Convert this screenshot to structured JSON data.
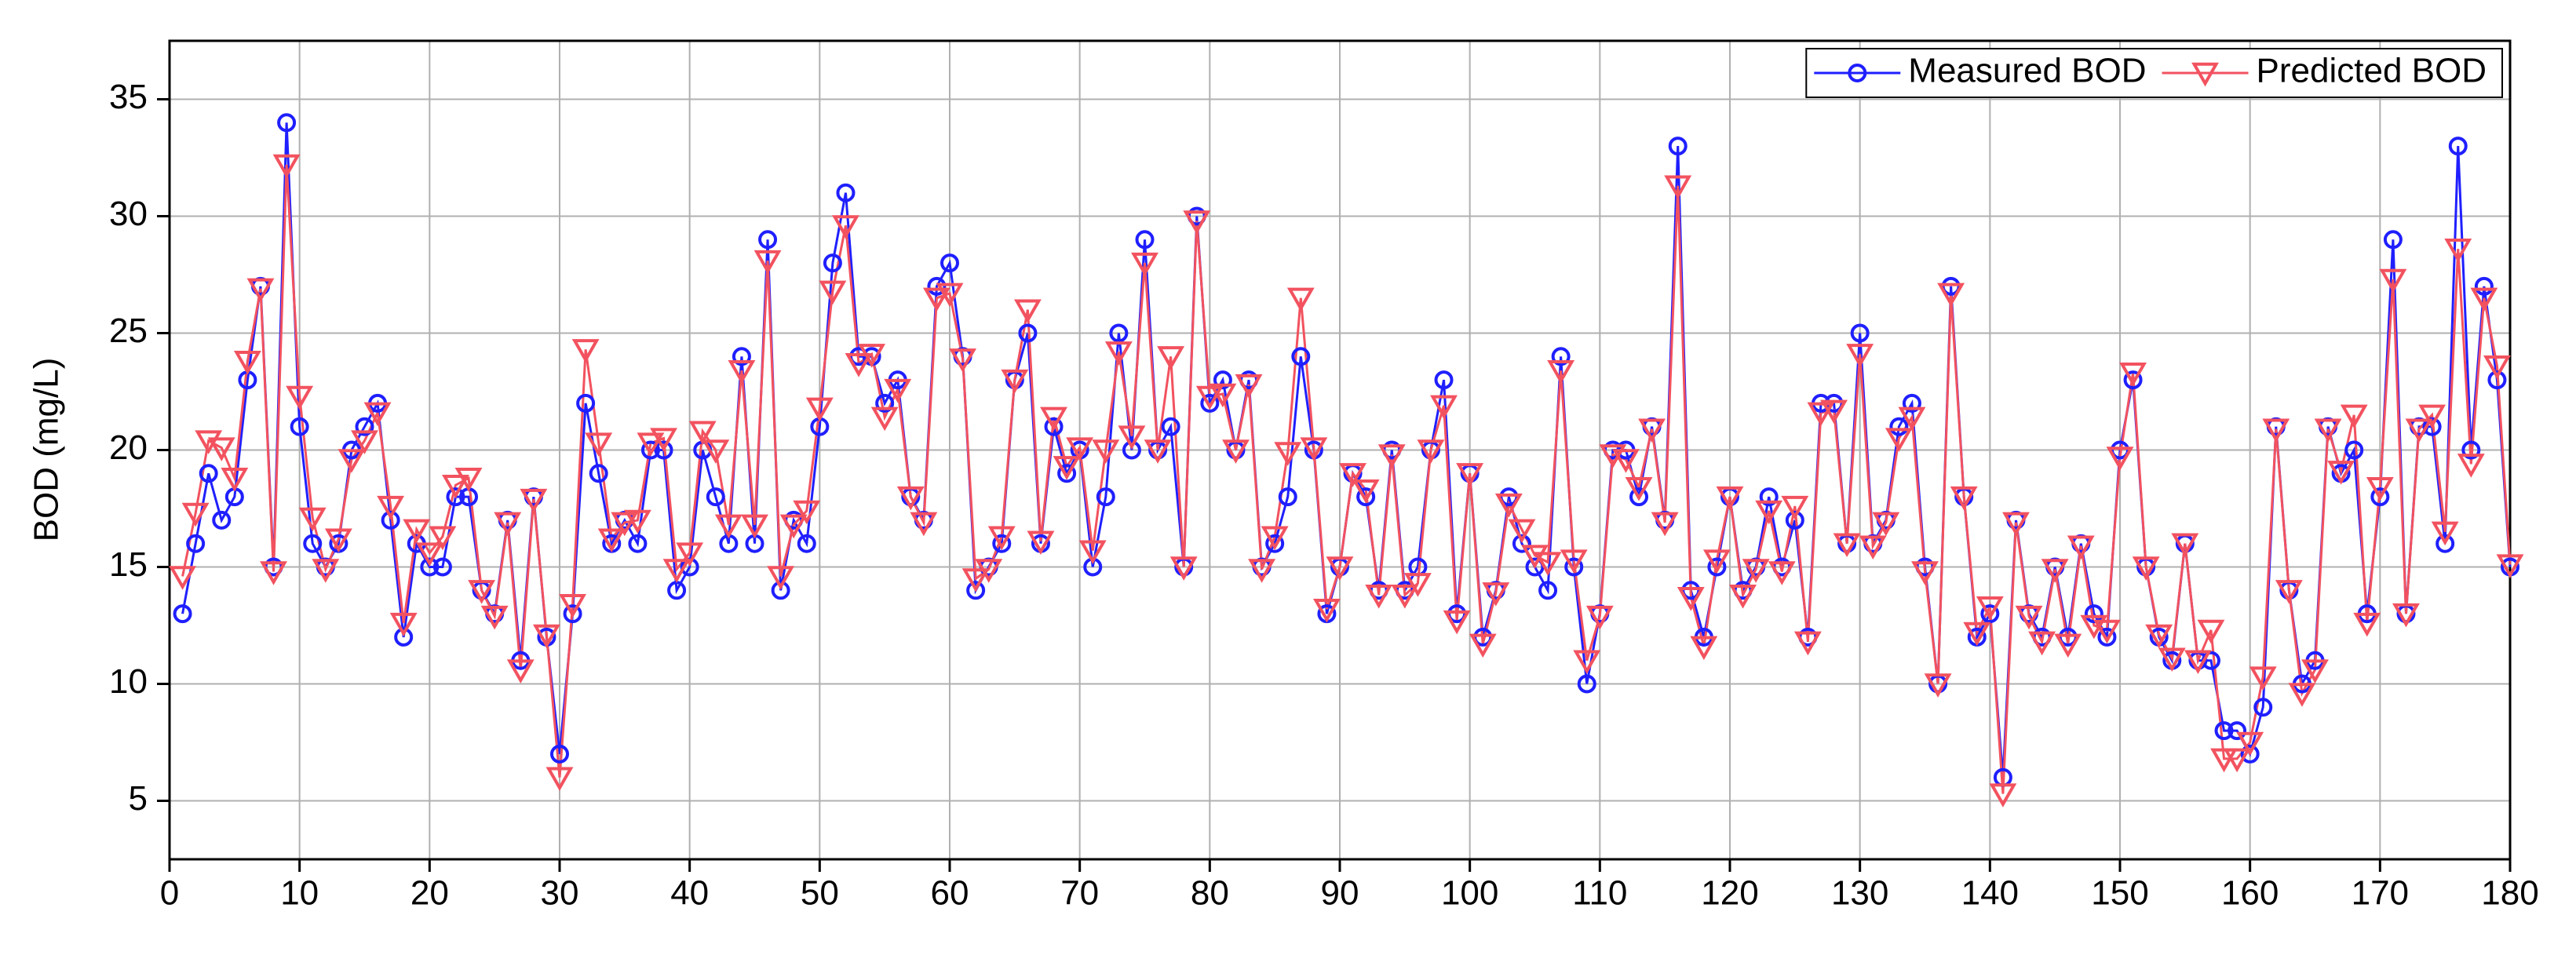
{
  "chart_data": {
    "type": "line",
    "y_label": "BOD  (mg/L)",
    "x": [
      1,
      2,
      3,
      4,
      5,
      6,
      7,
      8,
      9,
      10,
      11,
      12,
      13,
      14,
      15,
      16,
      17,
      18,
      19,
      20,
      21,
      22,
      23,
      24,
      25,
      26,
      27,
      28,
      29,
      30,
      31,
      32,
      33,
      34,
      35,
      36,
      37,
      38,
      39,
      40,
      41,
      42,
      43,
      44,
      45,
      46,
      47,
      48,
      49,
      50,
      51,
      52,
      53,
      54,
      55,
      56,
      57,
      58,
      59,
      60,
      61,
      62,
      63,
      64,
      65,
      66,
      67,
      68,
      69,
      70,
      71,
      72,
      73,
      74,
      75,
      76,
      77,
      78,
      79,
      80,
      81,
      82,
      83,
      84,
      85,
      86,
      87,
      88,
      89,
      90,
      91,
      92,
      93,
      94,
      95,
      96,
      97,
      98,
      99,
      100,
      101,
      102,
      103,
      104,
      105,
      106,
      107,
      108,
      109,
      110,
      111,
      112,
      113,
      114,
      115,
      116,
      117,
      118,
      119,
      120,
      121,
      122,
      123,
      124,
      125,
      126,
      127,
      128,
      129,
      130,
      131,
      132,
      133,
      134,
      135,
      136,
      137,
      138,
      139,
      140,
      141,
      142,
      143,
      144,
      145,
      146,
      147,
      148,
      149,
      150,
      151,
      152,
      153,
      154,
      155,
      156,
      157,
      158,
      159,
      160,
      161,
      162,
      163,
      164,
      165,
      166,
      167,
      168,
      169,
      170,
      171,
      172,
      173,
      174,
      175,
      176,
      177,
      178,
      179,
      180
    ],
    "series": [
      {
        "name": "Measured BOD",
        "color": "#1f1fff",
        "marker": "circle",
        "values": [
          13,
          16,
          19,
          17,
          18,
          23,
          27,
          15,
          34,
          21,
          16,
          15,
          16,
          20,
          21,
          22,
          17,
          12,
          16,
          15,
          15,
          18,
          18,
          14,
          13,
          17,
          11,
          18,
          12,
          7,
          13,
          22,
          19,
          16,
          17,
          16,
          20,
          20,
          14,
          15,
          20,
          18,
          16,
          24,
          16,
          29,
          14,
          17,
          16,
          21,
          28,
          31,
          24,
          24,
          22,
          23,
          18,
          17,
          27,
          28,
          24,
          14,
          15,
          16,
          23,
          25,
          16,
          21,
          19,
          20,
          15,
          18,
          25,
          20,
          29,
          20,
          21,
          15,
          30,
          22,
          23,
          20,
          23,
          15,
          16,
          18,
          24,
          20,
          13,
          15,
          19,
          18,
          14,
          20,
          14,
          15,
          20,
          23,
          13,
          19,
          12,
          14,
          18,
          16,
          15,
          14,
          24,
          15,
          10,
          13,
          20,
          20,
          18,
          21,
          17,
          33,
          14,
          12,
          15,
          18,
          14,
          15,
          18,
          15,
          17,
          12,
          22,
          22,
          16,
          25,
          16,
          17,
          21,
          22,
          15,
          10,
          27,
          18,
          12,
          13,
          6,
          17,
          13,
          12,
          15,
          12,
          16,
          13,
          12,
          20,
          23,
          15,
          12,
          11,
          16,
          11,
          11,
          8,
          8,
          7,
          9,
          21,
          14,
          10,
          11,
          21,
          19,
          20,
          13,
          18,
          29,
          13,
          21,
          21,
          16,
          33,
          20,
          27,
          23,
          15
        ]
      },
      {
        "name": "Predicted BOD",
        "color": "#f2525f",
        "marker": "triangle-down",
        "values": [
          14.6,
          17.3,
          20.4,
          20.1,
          18.8,
          23.8,
          26.9,
          14.8,
          32.2,
          22.3,
          17.1,
          14.9,
          16.2,
          19.6,
          20.4,
          21.6,
          17.6,
          12.6,
          16.6,
          15.6,
          16.3,
          18.5,
          18.8,
          14.0,
          12.9,
          16.9,
          10.6,
          17.9,
          12.1,
          6.0,
          13.4,
          24.3,
          20.3,
          16.2,
          16.9,
          17.0,
          20.3,
          20.5,
          14.9,
          15.6,
          20.8,
          20.0,
          16.8,
          23.4,
          16.8,
          28.1,
          14.6,
          16.8,
          17.4,
          21.8,
          26.8,
          29.6,
          23.7,
          24.1,
          21.4,
          22.6,
          18.0,
          16.9,
          26.5,
          26.7,
          23.9,
          14.5,
          14.9,
          16.3,
          23.0,
          26.0,
          16.1,
          21.4,
          19.3,
          20.1,
          15.7,
          20.0,
          24.2,
          20.6,
          28.0,
          20.0,
          24.0,
          15.0,
          29.8,
          22.3,
          22.4,
          20.0,
          22.8,
          14.9,
          16.3,
          19.9,
          26.5,
          20.1,
          13.2,
          15.0,
          19.0,
          18.3,
          13.8,
          19.8,
          13.8,
          14.3,
          20.0,
          21.9,
          12.7,
          19.0,
          11.7,
          13.9,
          17.7,
          16.6,
          15.5,
          15.2,
          23.4,
          15.3,
          11.0,
          12.9,
          19.8,
          19.6,
          18.4,
          20.9,
          16.9,
          31.3,
          13.7,
          11.6,
          15.3,
          18.0,
          13.8,
          14.9,
          17.4,
          14.8,
          17.6,
          11.8,
          21.6,
          21.7,
          16.0,
          24.1,
          15.9,
          16.9,
          20.5,
          21.4,
          14.8,
          10.0,
          26.7,
          18.0,
          12.2,
          13.3,
          5.3,
          16.9,
          12.9,
          11.8,
          14.9,
          11.7,
          15.9,
          12.5,
          12.3,
          19.7,
          23.3,
          15.0,
          12.1,
          11.1,
          16.0,
          11.0,
          12.3,
          6.8,
          6.8,
          7.5,
          10.3,
          20.9,
          14.0,
          9.6,
          10.6,
          20.9,
          19.1,
          21.5,
          12.6,
          18.4,
          27.3,
          13.0,
          20.9,
          21.5,
          16.5,
          28.6,
          19.4,
          26.5,
          23.6,
          15.1
        ]
      }
    ],
    "xlim": [
      0,
      180
    ],
    "xticks": [
      0,
      10,
      20,
      30,
      40,
      50,
      60,
      70,
      80,
      90,
      100,
      110,
      120,
      130,
      140,
      150,
      160,
      170,
      180
    ],
    "ylim": [
      2.5,
      37.5
    ],
    "yticks": [
      5,
      10,
      15,
      20,
      25,
      30,
      35
    ],
    "grid": true,
    "legend": "upper right"
  }
}
